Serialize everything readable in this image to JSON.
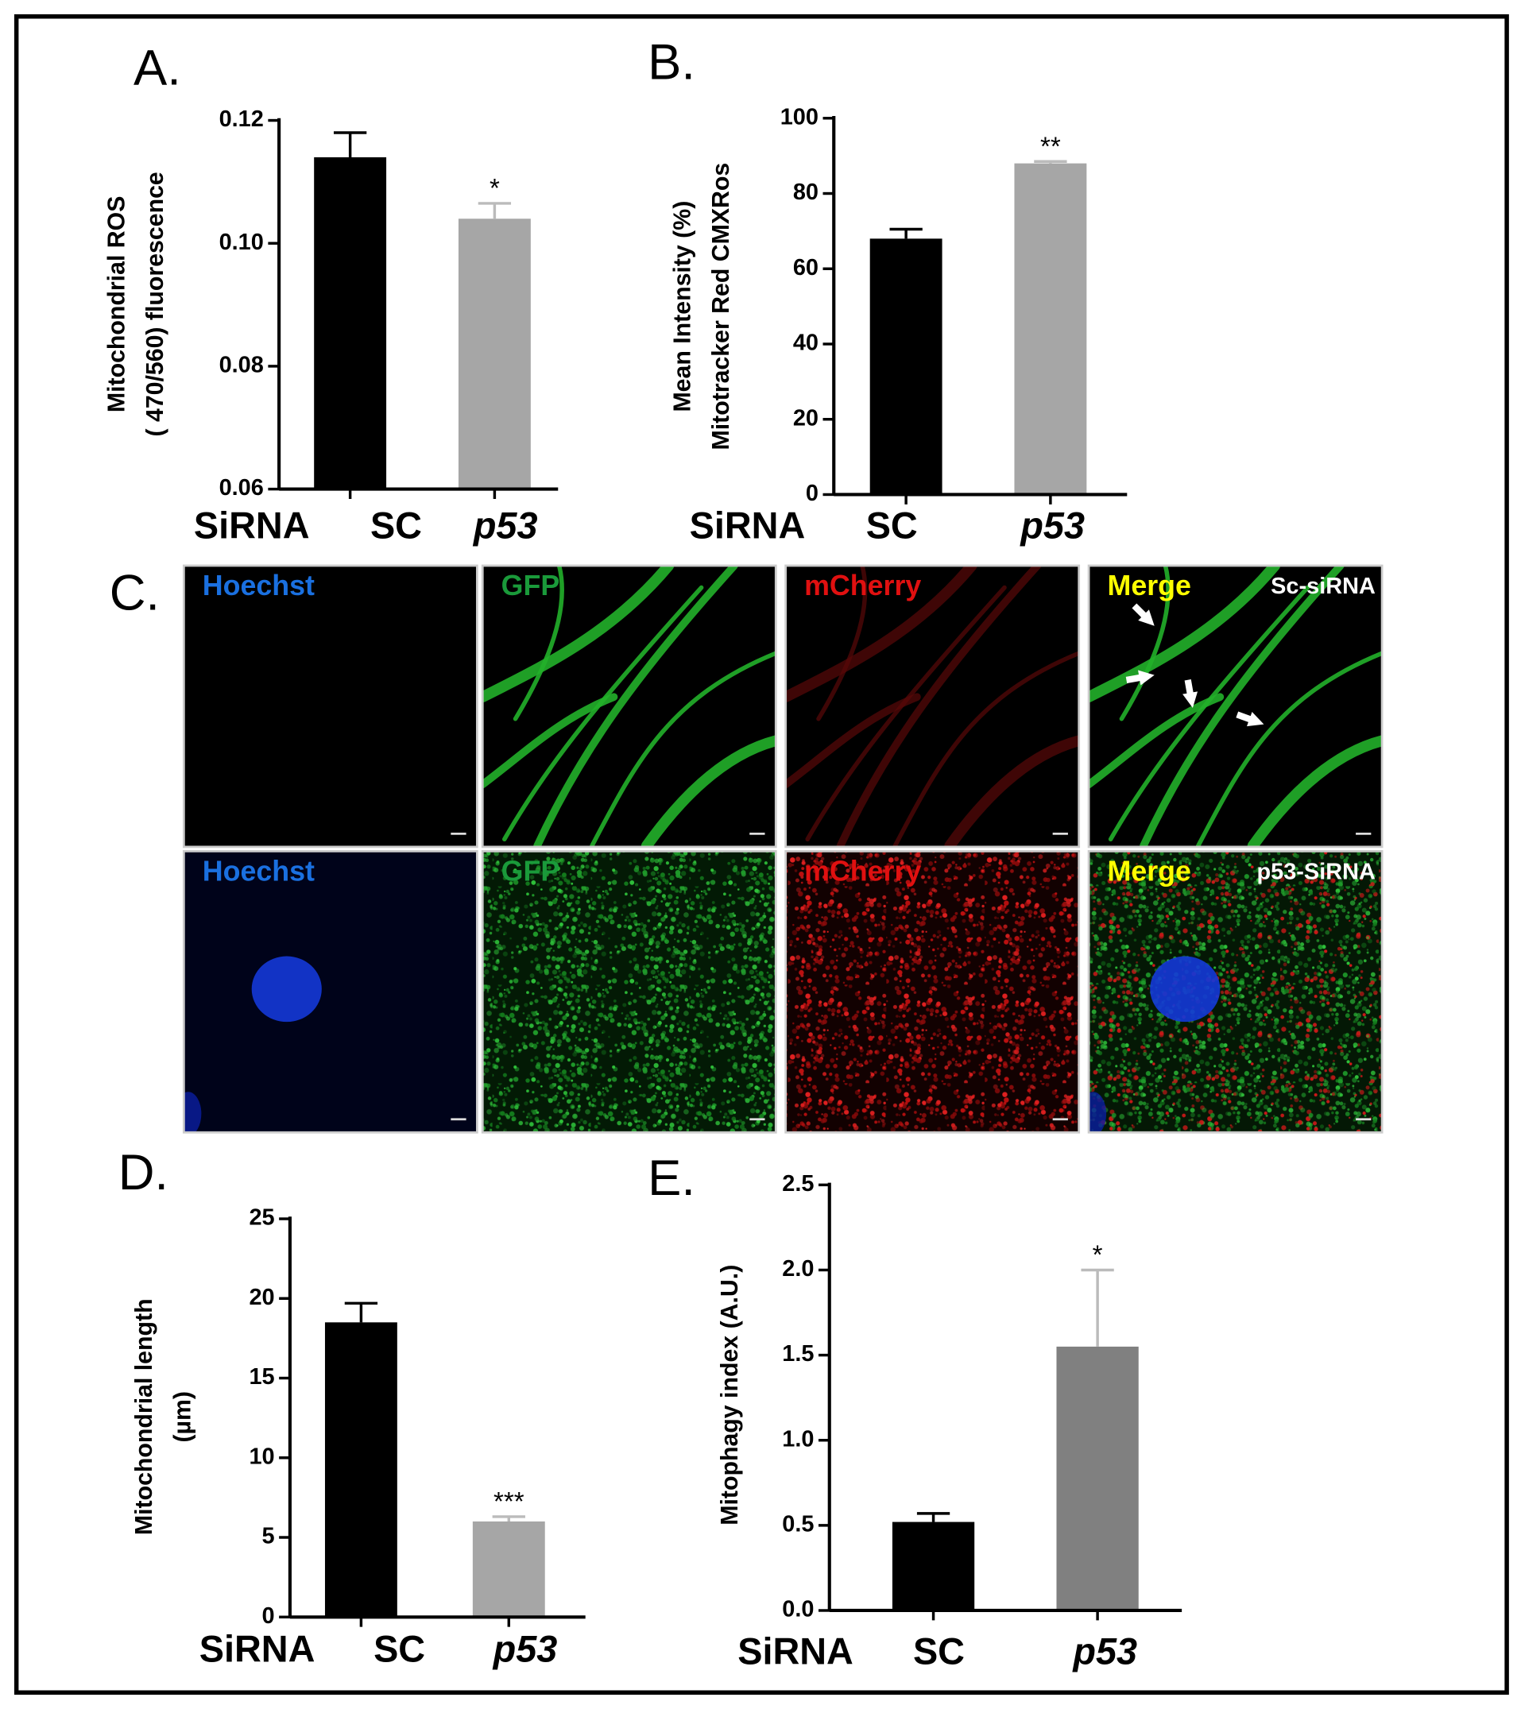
{
  "chart_data": [
    {
      "type": "bar",
      "panel_label": "A.",
      "ylabel": [
        "Mitochondrial ROS",
        "( 470/560) fluorescence"
      ],
      "xlabel": "SiRNA",
      "categories": [
        "SC",
        "p53"
      ],
      "values": [
        0.114,
        0.104
      ],
      "errors": [
        0.004,
        0.0025
      ],
      "colors": [
        "#000000",
        "#a6a6a6"
      ],
      "significance": [
        null,
        "*"
      ],
      "ylim": [
        0.06,
        0.12
      ],
      "yticks": [
        0.06,
        0.08,
        {
          "value": 0.1,
          "label": "0.10"
        },
        0.12
      ]
    },
    {
      "type": "bar",
      "panel_label": "B.",
      "ylabel": [
        "Mean Intensity (%)",
        "Mitotracker Red CMXRos"
      ],
      "xlabel": "SiRNA",
      "categories": [
        "SC",
        "p53"
      ],
      "values": [
        68,
        88
      ],
      "errors": [
        2.5,
        0.5
      ],
      "colors": [
        "#000000",
        "#a6a6a6"
      ],
      "significance": [
        null,
        "**"
      ],
      "ylim": [
        0,
        100
      ],
      "yticks": [
        0,
        20,
        40,
        60,
        80,
        100
      ]
    },
    {
      "type": "bar",
      "panel_label": "D.",
      "ylabel": [
        "Mitochondrial length",
        "(µm)"
      ],
      "xlabel": "SiRNA",
      "categories": [
        "SC",
        "p53"
      ],
      "values": [
        18.5,
        6
      ],
      "errors": [
        1.2,
        0.3
      ],
      "colors": [
        "#000000",
        "#a6a6a6"
      ],
      "significance": [
        null,
        "***"
      ],
      "ylim": [
        0,
        25
      ],
      "yticks": [
        0,
        5,
        10,
        15,
        20,
        25
      ]
    },
    {
      "type": "bar",
      "panel_label": "E.",
      "ylabel": [
        "Mitophagy index (A.U.)"
      ],
      "xlabel": "SiRNA",
      "categories": [
        "SC",
        "p53"
      ],
      "values": [
        0.52,
        1.55
      ],
      "errors": [
        0.05,
        0.45
      ],
      "colors": [
        "#000000",
        "#808080"
      ],
      "significance": [
        null,
        "*"
      ],
      "ylim": [
        0,
        2.5
      ],
      "yticks": [
        {
          "value": 0,
          "label": "0.0"
        },
        0.5,
        {
          "value": 1,
          "label": "1.0"
        },
        1.5,
        {
          "value": 2,
          "label": "2.0"
        },
        2.5
      ]
    }
  ],
  "image_panel": {
    "panel_label": "C.",
    "rows": [
      {
        "condition": "Sc-siRNA",
        "channels": [
          "Hoechst",
          "GFP",
          "mCherry",
          "Merge"
        ]
      },
      {
        "condition": "p53-SiRNA",
        "channels": [
          "Hoechst",
          "GFP",
          "mCherry",
          "Merge"
        ]
      }
    ]
  }
}
